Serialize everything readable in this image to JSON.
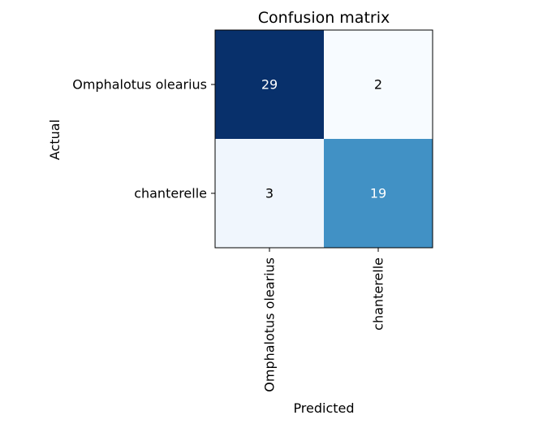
{
  "chart_data": {
    "type": "heatmap",
    "title": "Confusion matrix",
    "xlabel": "Predicted",
    "ylabel": "Actual",
    "rows": [
      "Omphalotus olearius",
      "chanterelle"
    ],
    "columns": [
      "Omphalotus olearius",
      "chanterelle"
    ],
    "values": [
      [
        29,
        2
      ],
      [
        3,
        19
      ]
    ],
    "colormap": "Blues",
    "colors": {
      "low": "#f7fbff",
      "mid": "#4292c6",
      "high": "#08306b",
      "text_light": "#ffffff",
      "text_dark": "#000000"
    },
    "grid": false
  }
}
